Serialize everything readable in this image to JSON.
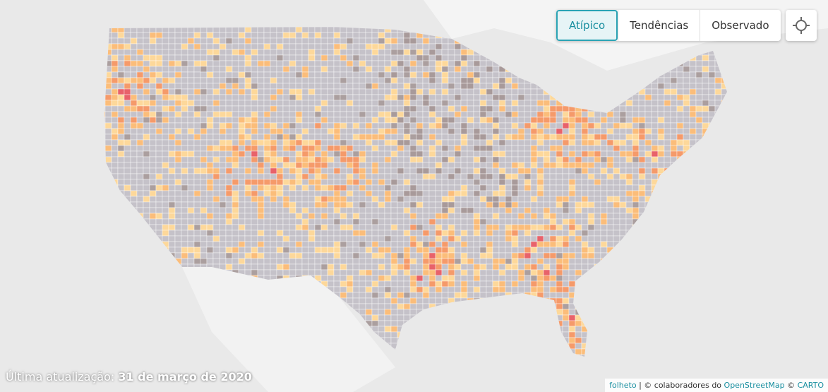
{
  "controls": {
    "modes": [
      "Atípico",
      "Tendências",
      "Observado"
    ],
    "active_mode": "Atípico"
  },
  "footer": {
    "last_updated_label": "Última atualização:",
    "last_updated_date": "31 de março de 2020"
  },
  "attribution": {
    "leaflet": "folheto",
    "contributors": "© colaboradores do",
    "osm": "OpenStreetMap",
    "separator": "©",
    "carto": "CARTO"
  }
}
